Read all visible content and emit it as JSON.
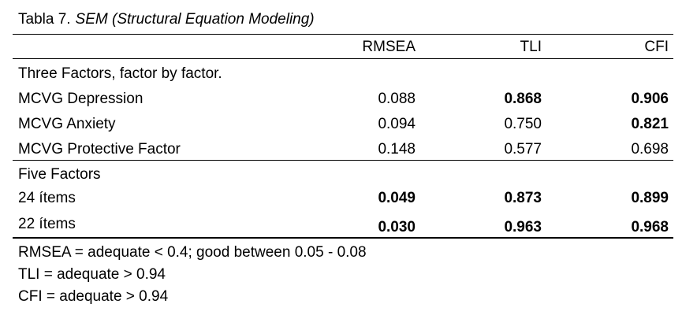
{
  "table": {
    "title": "Tabla 7.",
    "subtitle": "SEM (Structural Equation Modeling)",
    "columns": [
      "RMSEA",
      "TLI",
      "CFI"
    ],
    "groups": [
      {
        "label": "Three Factors, factor by factor.",
        "rows": [
          {
            "label": "MCVG Depression",
            "rmsea": "0.088",
            "tli": "0.868",
            "cfi": "0.906",
            "bold": [
              false,
              true,
              true
            ]
          },
          {
            "label": "MCVG Anxiety",
            "rmsea": "0.094",
            "tli": "0.750",
            "cfi": "0.821",
            "bold": [
              false,
              false,
              true
            ]
          },
          {
            "label": "MCVG Protective Factor",
            "rmsea": "0.148",
            "tli": "0.577",
            "cfi": "0.698",
            "bold": [
              false,
              false,
              false
            ]
          }
        ]
      },
      {
        "label": "Five Factors",
        "rows": [
          {
            "label": "24 ítems",
            "rmsea": "0.049",
            "tli": "0.873",
            "cfi": "0.899",
            "bold": [
              true,
              true,
              true
            ]
          },
          {
            "label": "22 ítems",
            "rmsea": "0.030",
            "tli": "0.963",
            "cfi": "0.968",
            "bold": [
              true,
              true,
              true
            ]
          }
        ]
      }
    ],
    "notes": [
      "RMSEA = adequate < 0.4; good between 0.05 - 0.08",
      "TLI = adequate > 0.94",
      "CFI = adequate > 0.94"
    ]
  }
}
